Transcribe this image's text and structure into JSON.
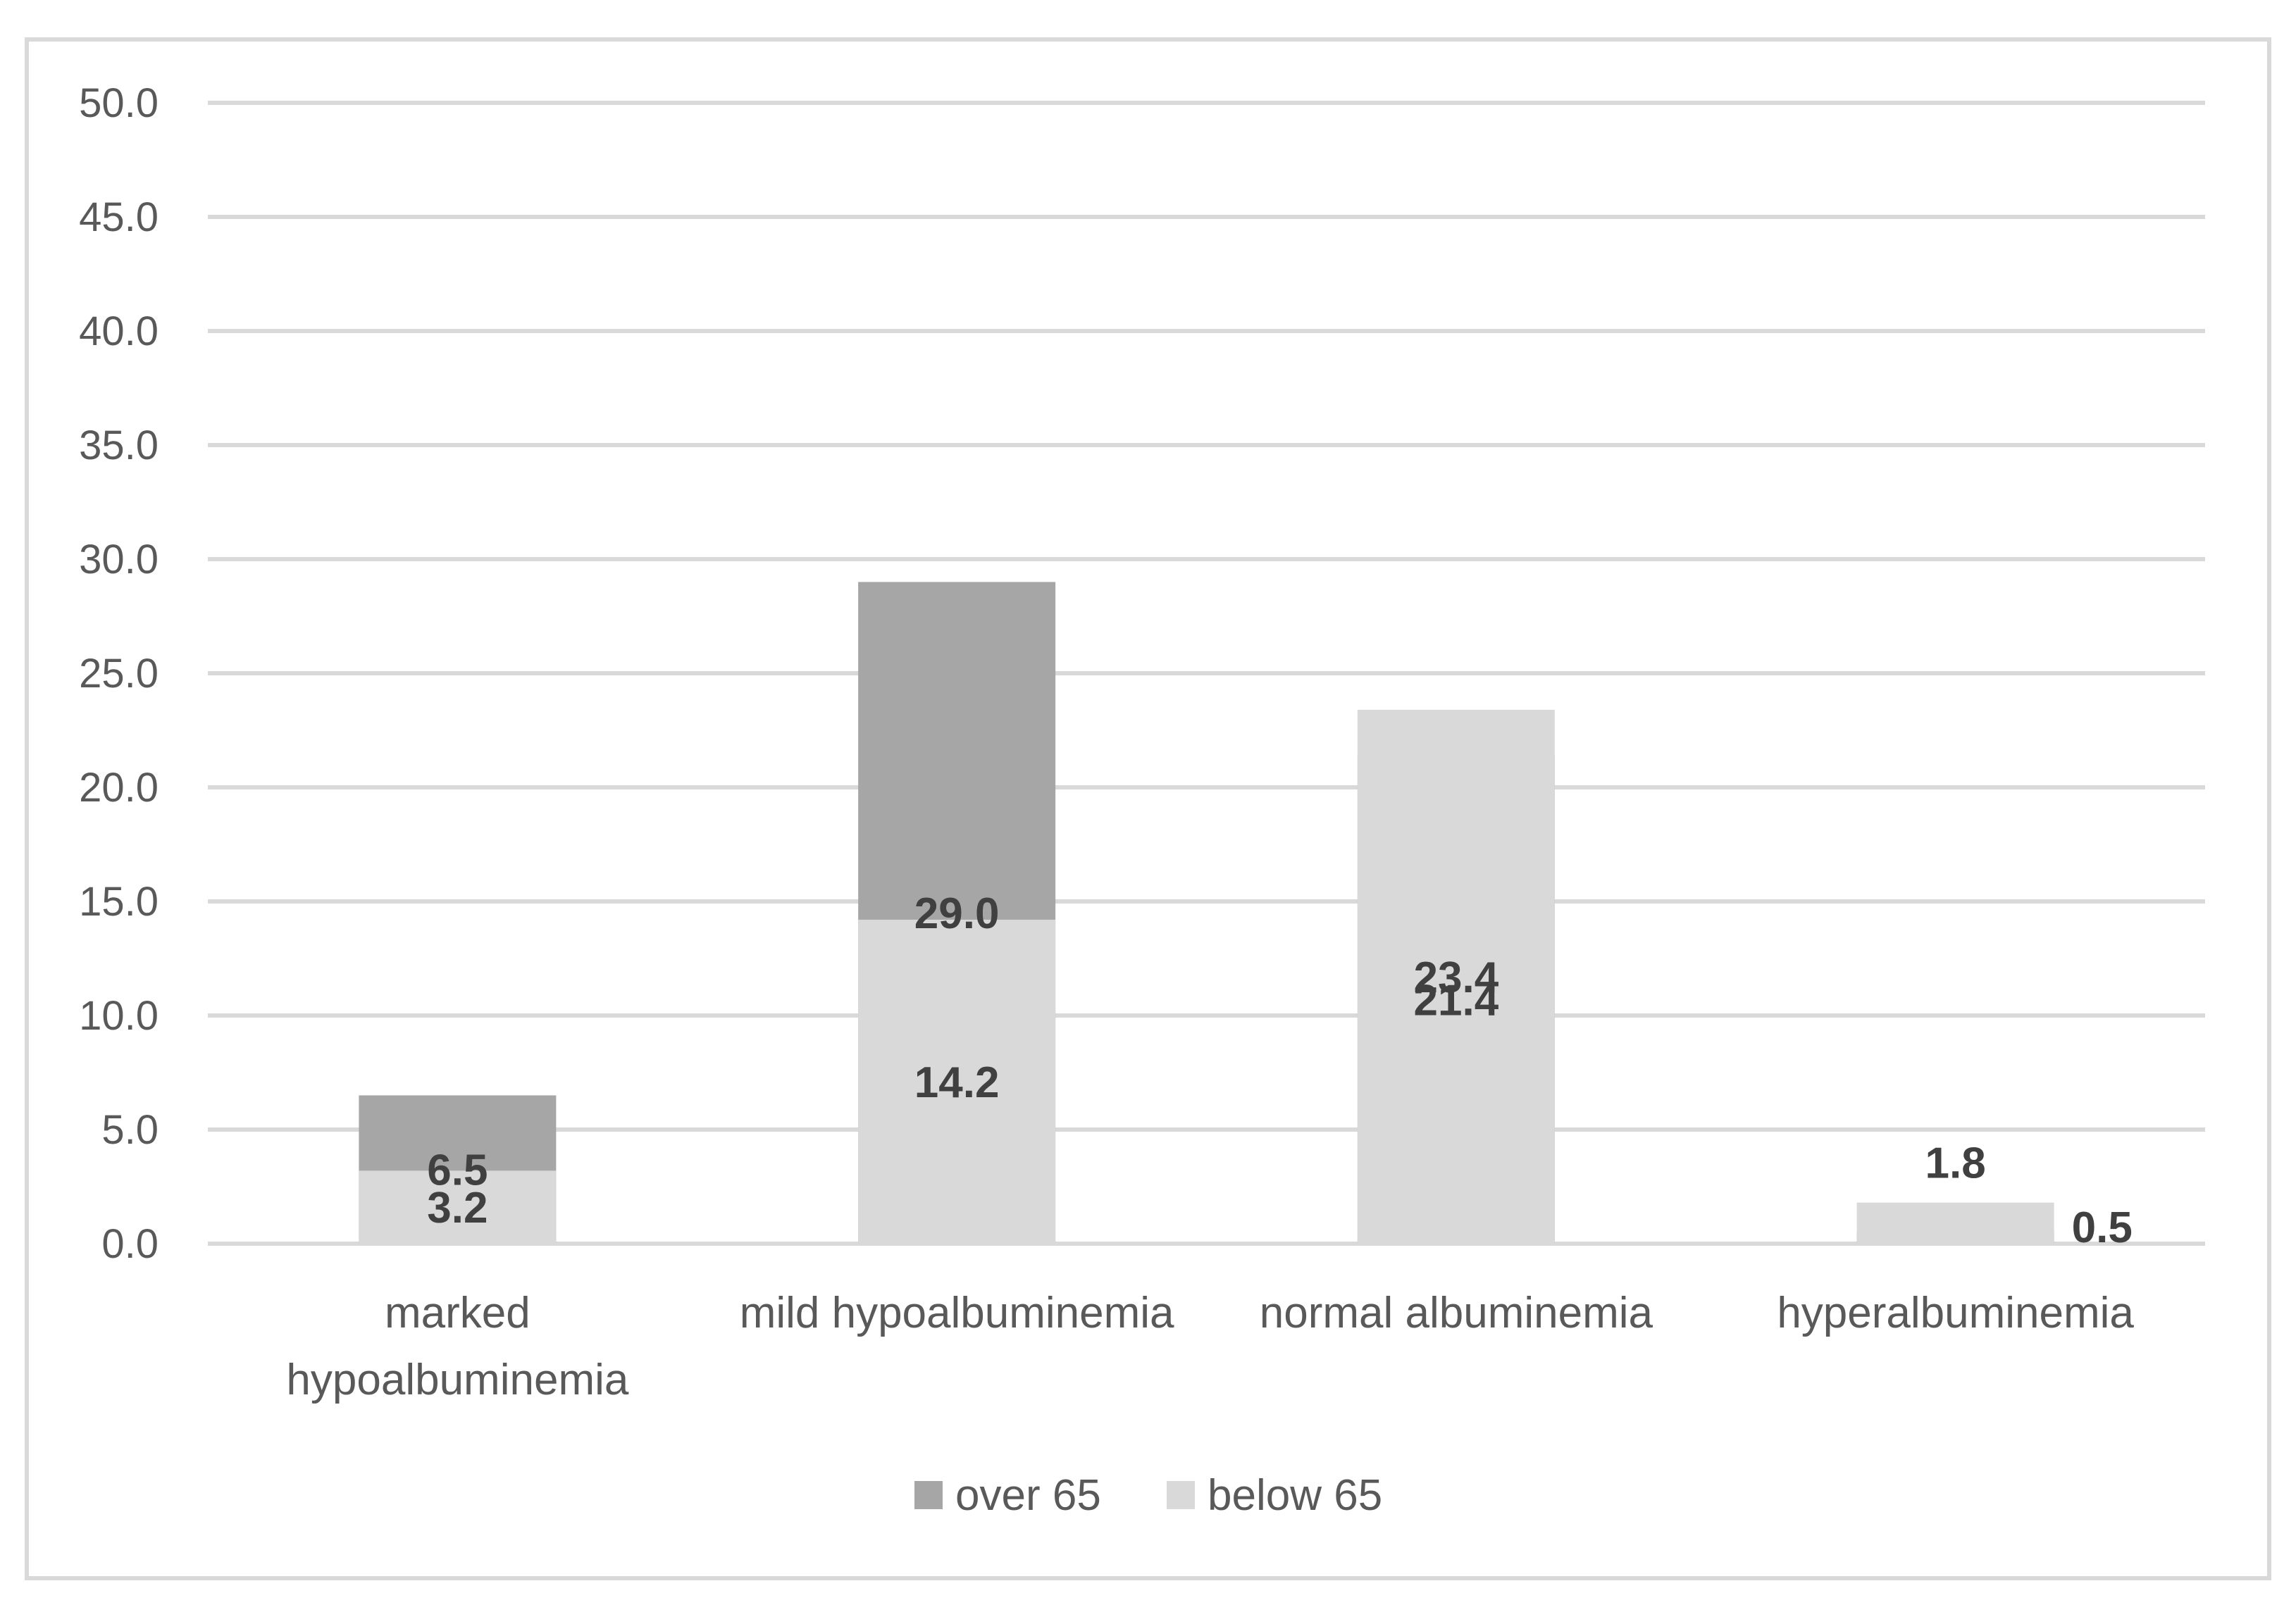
{
  "chart_data": {
    "type": "bar",
    "stacked": true,
    "categories": [
      [
        "marked",
        "hypoalbuminemia"
      ],
      [
        "mild hypoalbuminemia"
      ],
      [
        "normal albuminemia"
      ],
      [
        "hyperalbuminemia"
      ]
    ],
    "series": [
      {
        "name": "over 65",
        "values": [
          6.5,
          29.0,
          21.4,
          0.5
        ],
        "color": "#a6a6a6"
      },
      {
        "name": "below 65",
        "values": [
          3.2,
          14.2,
          23.4,
          1.8
        ],
        "color": "#d9d9d9"
      }
    ],
    "data_labels": [
      [
        "6.5",
        "29.0",
        "21.4",
        "0.5"
      ],
      [
        "3.2",
        "14.2",
        "23.4",
        "1.8"
      ]
    ],
    "ylim": [
      0,
      50
    ],
    "yticks": [
      "0.0",
      "5.0",
      "10.0",
      "15.0",
      "20.0",
      "25.0",
      "30.0",
      "35.0",
      "40.0",
      "45.0",
      "50.0"
    ],
    "grid": true,
    "legend_position": "bottom",
    "border_color": "#d9d9d9",
    "grid_color": "#d9d9d9"
  }
}
